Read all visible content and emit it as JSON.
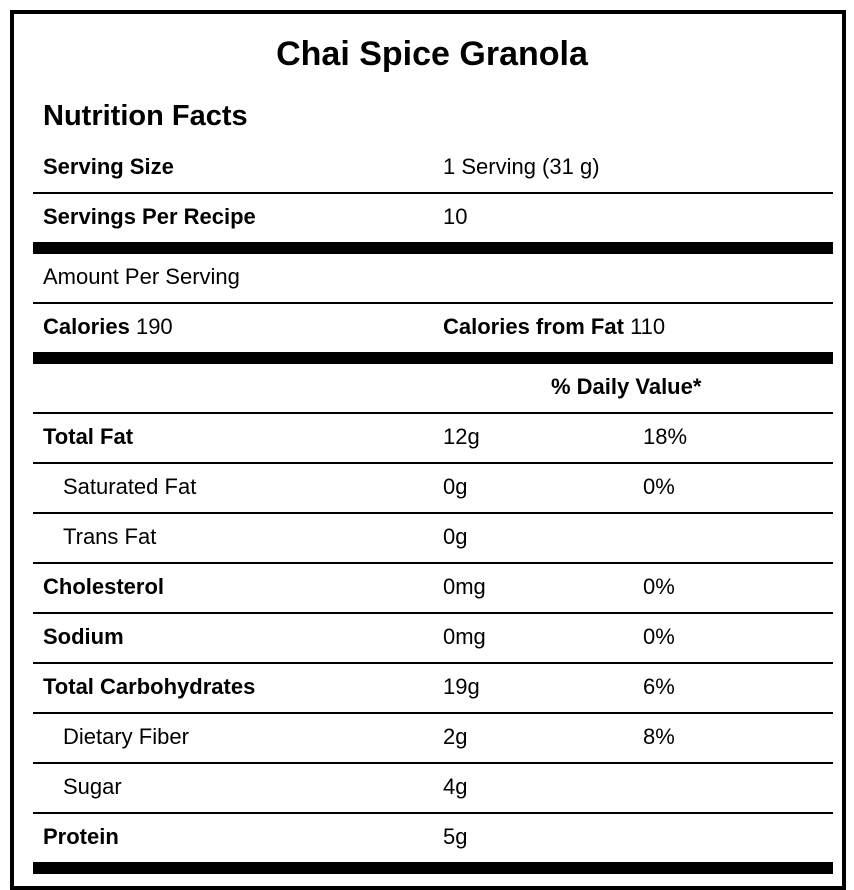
{
  "title": "Chai Spice Granola",
  "heading": "Nutrition Facts",
  "serving_size": {
    "label": "Serving Size",
    "value": "1 Serving (31 g)"
  },
  "servings_per_recipe": {
    "label": "Servings Per Recipe",
    "value": "10"
  },
  "amount_per_serving": "Amount Per Serving",
  "calories": {
    "label": "Calories",
    "value": "190"
  },
  "calories_from_fat": {
    "label": "Calories from Fat",
    "value": "110"
  },
  "daily_value_header": "% Daily Value*",
  "nutrients": [
    {
      "name": "Total Fat",
      "amount": "12g",
      "dv": "18%"
    },
    {
      "name": "Saturated Fat",
      "amount": "0g",
      "dv": "0%"
    },
    {
      "name": "Trans Fat",
      "amount": "0g",
      "dv": ""
    },
    {
      "name": "Cholesterol",
      "amount": "0mg",
      "dv": "0%"
    },
    {
      "name": "Sodium",
      "amount": "0mg",
      "dv": "0%"
    },
    {
      "name": "Total Carbohydrates",
      "amount": "19g",
      "dv": "6%"
    },
    {
      "name": "Dietary Fiber",
      "amount": "2g",
      "dv": "8%"
    },
    {
      "name": "Sugar",
      "amount": "4g",
      "dv": ""
    },
    {
      "name": "Protein",
      "amount": "5g",
      "dv": ""
    }
  ]
}
